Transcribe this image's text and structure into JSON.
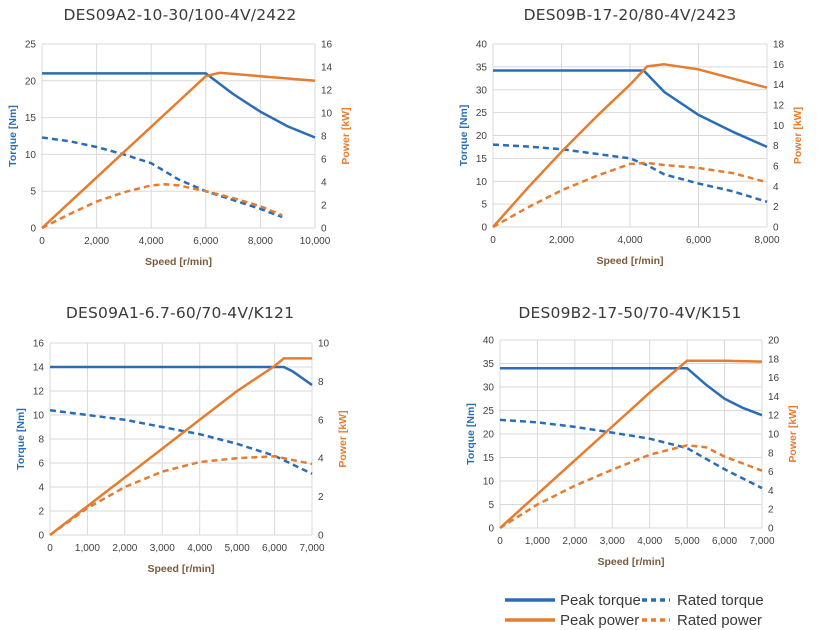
{
  "colors": {
    "torque": "#2a6db5",
    "power": "#e67c2e",
    "speed_label": "#7a5a3a"
  },
  "legend": {
    "peak_torque": "Peak torque",
    "peak_power": "Peak power",
    "rated_torque": "Rated torque",
    "rated_power": "Rated power"
  },
  "chart_data": [
    {
      "type": "line",
      "title": "DES09A2-10-30/100-4V/2422",
      "xlabel": "Speed  [r/min]",
      "ylabel": "Torque  [Nm]",
      "y2label": "Power  [kW]",
      "xlim": [
        0,
        10000
      ],
      "xticks": [
        0,
        2000,
        4000,
        6000,
        8000,
        10000
      ],
      "xtick_labels": [
        "0",
        "2,000",
        "4,000",
        "6,000",
        "8,000",
        "10,000"
      ],
      "ylim": [
        0,
        25
      ],
      "yticks": [
        0,
        5,
        10,
        15,
        20,
        25
      ],
      "y2lim": [
        0,
        16
      ],
      "y2ticks": [
        0,
        2,
        4,
        6,
        8,
        10,
        12,
        14,
        16
      ],
      "series": [
        {
          "name": "Peak torque",
          "axis": "left",
          "style": "solid",
          "color": "torque",
          "x": [
            0,
            6000,
            6500,
            7000,
            8000,
            9000,
            10000
          ],
          "y": [
            21,
            21,
            19.6,
            18.2,
            15.8,
            13.8,
            12.3
          ]
        },
        {
          "name": "Rated torque",
          "axis": "left",
          "style": "dashed",
          "color": "torque",
          "x": [
            0,
            1000,
            2000,
            3000,
            4000,
            5000,
            6000,
            7000,
            8000,
            8800
          ],
          "y": [
            12.3,
            11.8,
            11.0,
            10.0,
            8.8,
            6.6,
            5.0,
            3.8,
            2.6,
            1.5
          ]
        },
        {
          "name": "Peak power",
          "axis": "right",
          "style": "solid",
          "color": "power",
          "x": [
            0,
            1000,
            2000,
            3000,
            4000,
            5000,
            6000,
            6500,
            7000,
            8000,
            9000,
            10000
          ],
          "y": [
            0,
            2.2,
            4.4,
            6.6,
            8.8,
            11.0,
            13.2,
            13.5,
            13.4,
            13.2,
            13.0,
            12.8
          ]
        },
        {
          "name": "Rated power",
          "axis": "right",
          "style": "dashed",
          "color": "power",
          "x": [
            0,
            1000,
            2000,
            3000,
            4000,
            4500,
            5000,
            6000,
            7000,
            8000,
            8800
          ],
          "y": [
            0,
            1.2,
            2.3,
            3.1,
            3.7,
            3.8,
            3.7,
            3.2,
            2.6,
            1.9,
            1.1
          ]
        }
      ]
    },
    {
      "type": "line",
      "title": "DES09B-17-20/80-4V/2423",
      "xlabel": "Speed  [r/min]",
      "ylabel": "Torque  [Nm]",
      "y2label": "Power  [kW]",
      "xlim": [
        0,
        8000
      ],
      "xticks": [
        0,
        2000,
        4000,
        6000,
        8000
      ],
      "xtick_labels": [
        "0",
        "2,000",
        "4,000",
        "6,000",
        "8,000"
      ],
      "ylim": [
        0,
        40
      ],
      "yticks": [
        0,
        5,
        10,
        15,
        20,
        25,
        30,
        35,
        40
      ],
      "y2lim": [
        0,
        18
      ],
      "y2ticks": [
        0,
        2,
        4,
        6,
        8,
        10,
        12,
        14,
        16,
        18
      ],
      "series": [
        {
          "name": "Peak torque",
          "axis": "left",
          "style": "solid",
          "color": "torque",
          "x": [
            0,
            4400,
            5000,
            6000,
            7000,
            8000
          ],
          "y": [
            34.2,
            34.2,
            29.5,
            24.5,
            20.8,
            17.5
          ]
        },
        {
          "name": "Rated torque",
          "axis": "left",
          "style": "dashed",
          "color": "torque",
          "x": [
            0,
            1000,
            2000,
            3000,
            4000,
            4500,
            5000,
            6000,
            7000,
            8000
          ],
          "y": [
            18.0,
            17.6,
            17.0,
            16.0,
            15.0,
            13.5,
            11.5,
            9.5,
            7.8,
            5.5
          ]
        },
        {
          "name": "Peak power",
          "axis": "right",
          "style": "solid",
          "color": "power",
          "x": [
            0,
            1000,
            2000,
            3000,
            4000,
            4500,
            5000,
            6000,
            7000,
            8000
          ],
          "y": [
            0,
            3.8,
            7.4,
            10.8,
            14.0,
            15.8,
            16.0,
            15.5,
            14.6,
            13.7
          ]
        },
        {
          "name": "Rated power",
          "axis": "right",
          "style": "dashed",
          "color": "power",
          "x": [
            0,
            1000,
            2000,
            3000,
            4000,
            4500,
            5000,
            6000,
            7000,
            8000
          ],
          "y": [
            0,
            1.9,
            3.6,
            5.0,
            6.2,
            6.3,
            6.1,
            5.8,
            5.3,
            4.4
          ]
        }
      ]
    },
    {
      "type": "line",
      "title": "DES09A1-6.7-60/70-4V/K121",
      "xlabel": "Speed  [r/min]",
      "ylabel": "Torque [Nm]",
      "y2label": "Power [kW]",
      "xlim": [
        0,
        7000
      ],
      "xticks": [
        0,
        1000,
        2000,
        3000,
        4000,
        5000,
        6000,
        7000
      ],
      "xtick_labels": [
        "0",
        "1,000",
        "2,000",
        "3,000",
        "4,000",
        "5,000",
        "6,000",
        "7,000"
      ],
      "ylim": [
        0,
        16
      ],
      "yticks": [
        0,
        2,
        4,
        6,
        8,
        10,
        12,
        14,
        16
      ],
      "y2lim": [
        0,
        10
      ],
      "y2ticks": [
        0,
        2,
        4,
        6,
        8,
        10
      ],
      "series": [
        {
          "name": "Peak torque",
          "axis": "left",
          "style": "solid",
          "color": "torque",
          "x": [
            0,
            6250,
            6500,
            7000
          ],
          "y": [
            14.0,
            14.0,
            13.6,
            12.5
          ]
        },
        {
          "name": "Rated torque",
          "axis": "left",
          "style": "dashed",
          "color": "torque",
          "x": [
            0,
            1000,
            2000,
            3000,
            4000,
            5000,
            6000,
            7000
          ],
          "y": [
            10.4,
            10.0,
            9.6,
            9.0,
            8.4,
            7.6,
            6.6,
            5.1
          ]
        },
        {
          "name": "Peak power",
          "axis": "right",
          "style": "solid",
          "color": "power",
          "x": [
            0,
            1000,
            2000,
            3000,
            4000,
            5000,
            6000,
            6250,
            7000
          ],
          "y": [
            0,
            1.5,
            3.0,
            4.5,
            6.0,
            7.5,
            8.8,
            9.2,
            9.2
          ]
        },
        {
          "name": "Rated power",
          "axis": "right",
          "style": "dashed",
          "color": "power",
          "x": [
            0,
            1000,
            2000,
            3000,
            4000,
            5000,
            6000,
            7000
          ],
          "y": [
            0,
            1.4,
            2.5,
            3.3,
            3.8,
            4.0,
            4.1,
            3.7
          ]
        }
      ]
    },
    {
      "type": "line",
      "title": "DES09B2-17-50/70-4V/K151",
      "xlabel": "Speed  [r/min]",
      "ylabel": "Torque [Nm]",
      "y2label": "Power [kW]",
      "xlim": [
        0,
        7000
      ],
      "xticks": [
        0,
        1000,
        2000,
        3000,
        4000,
        5000,
        6000,
        7000
      ],
      "xtick_labels": [
        "0",
        "1,000",
        "2,000",
        "3,000",
        "4,000",
        "5,000",
        "6,000",
        "7,000"
      ],
      "ylim": [
        0,
        40
      ],
      "yticks": [
        0,
        5,
        10,
        15,
        20,
        25,
        30,
        35,
        40
      ],
      "y2lim": [
        0,
        20
      ],
      "y2ticks": [
        0,
        2,
        4,
        6,
        8,
        10,
        12,
        14,
        16,
        18,
        20
      ],
      "series": [
        {
          "name": "Peak torque",
          "axis": "left",
          "style": "solid",
          "color": "torque",
          "x": [
            0,
            5000,
            5500,
            6000,
            6500,
            7000
          ],
          "y": [
            34.0,
            34.0,
            30.5,
            27.5,
            25.5,
            24.0
          ]
        },
        {
          "name": "Rated torque",
          "axis": "left",
          "style": "dashed",
          "color": "torque",
          "x": [
            0,
            1000,
            2000,
            3000,
            4000,
            5000,
            6000,
            7000
          ],
          "y": [
            23.0,
            22.5,
            21.5,
            20.3,
            19.0,
            17.0,
            12.5,
            8.5
          ]
        },
        {
          "name": "Peak power",
          "axis": "right",
          "style": "solid",
          "color": "power",
          "x": [
            0,
            1000,
            2000,
            3000,
            4000,
            5000,
            6000,
            7000
          ],
          "y": [
            0,
            3.6,
            7.2,
            10.8,
            14.4,
            17.8,
            17.8,
            17.7
          ]
        },
        {
          "name": "Rated power",
          "axis": "right",
          "style": "dashed",
          "color": "power",
          "x": [
            0,
            1000,
            2000,
            3000,
            4000,
            5000,
            5500,
            6000,
            7000
          ],
          "y": [
            0,
            2.5,
            4.5,
            6.2,
            7.8,
            8.8,
            8.6,
            7.6,
            6.1
          ]
        }
      ]
    }
  ]
}
